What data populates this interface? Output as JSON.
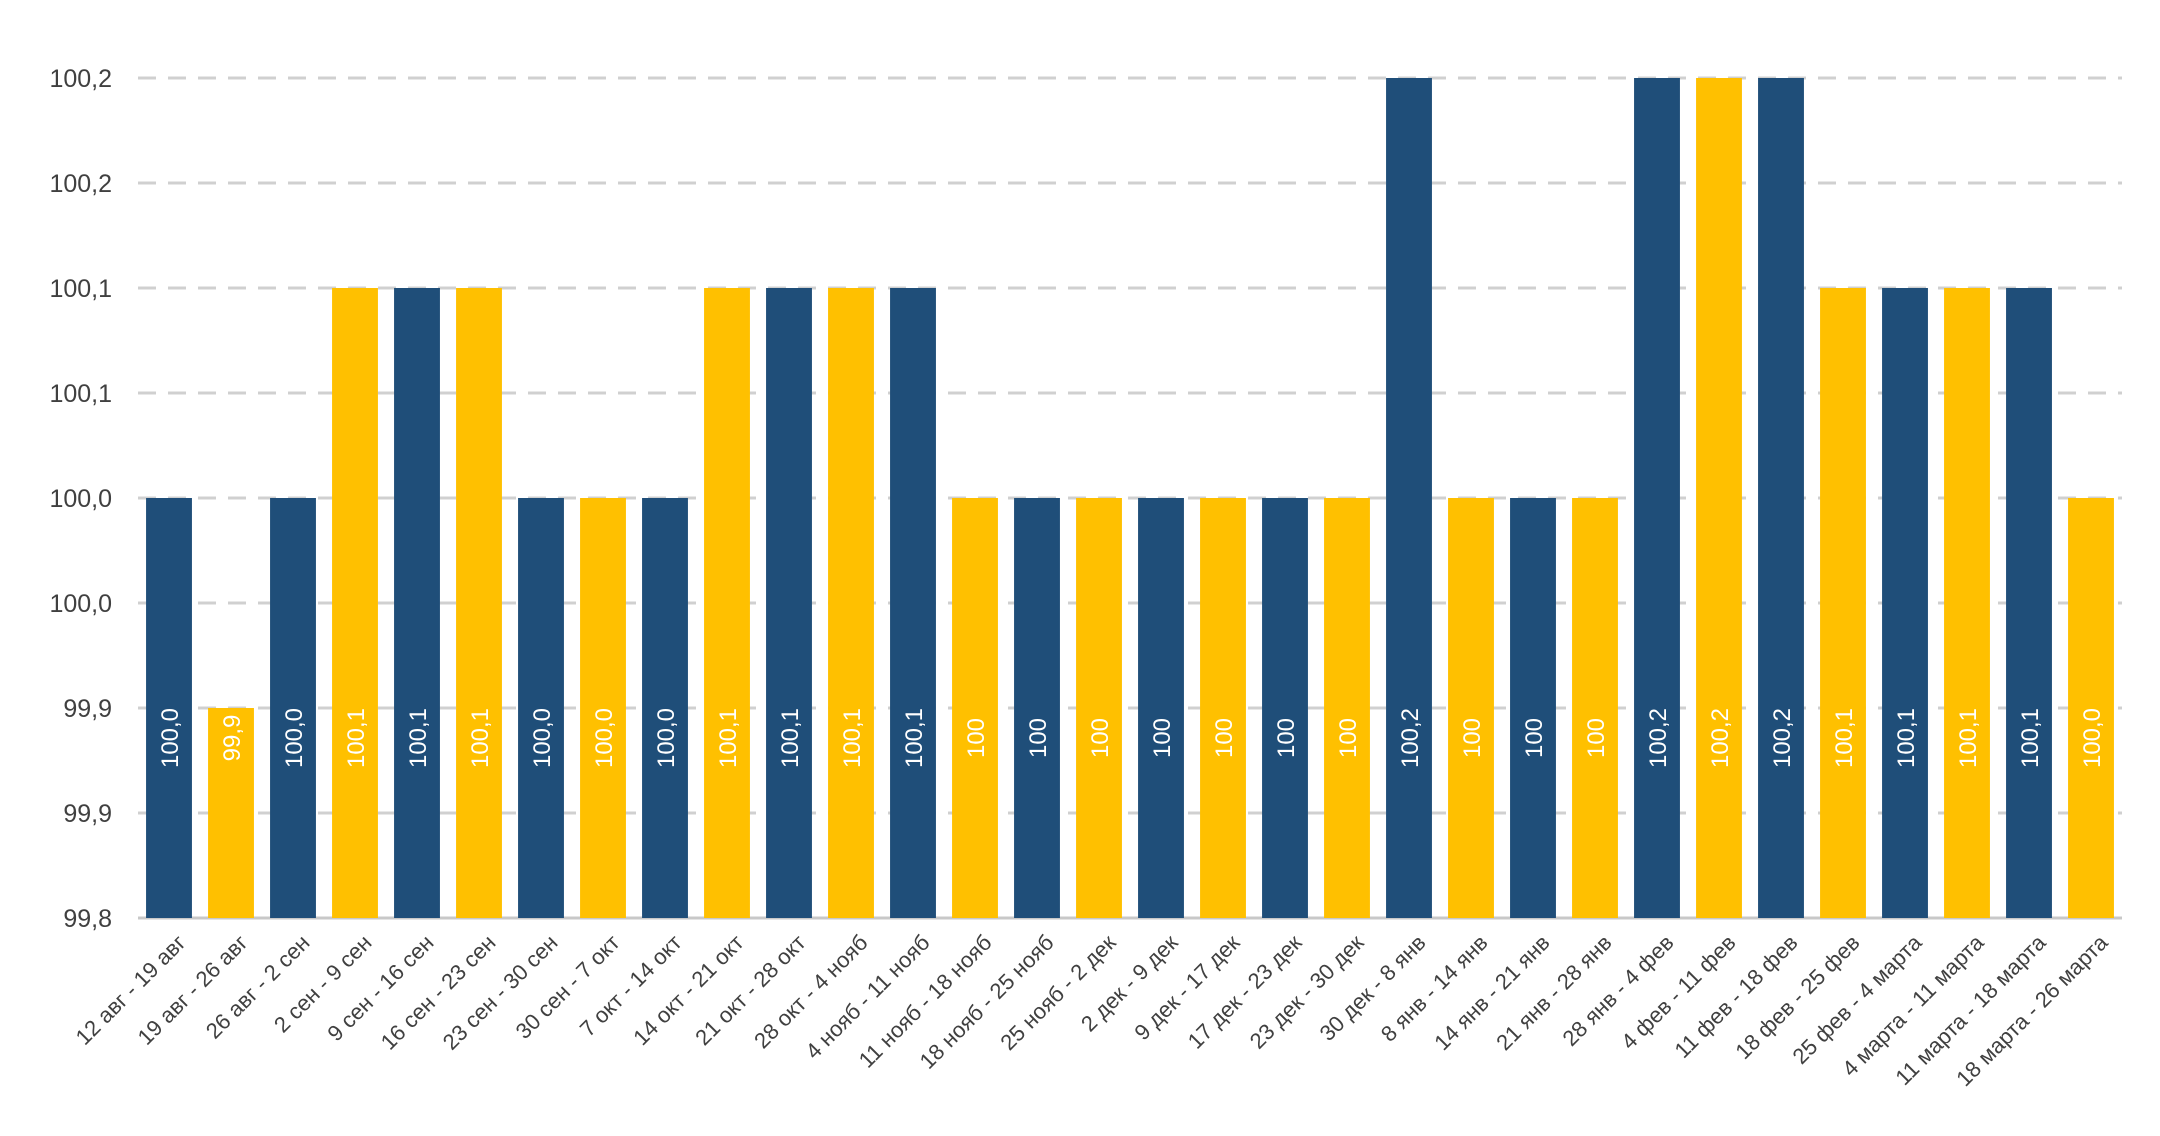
{
  "chart_data": {
    "type": "bar",
    "title": "",
    "xlabel": "",
    "ylabel": "",
    "ylim": [
      99.8,
      100.2
    ],
    "grid": true,
    "legend": "none",
    "y_tick_labels": [
      "99,8",
      "99,9",
      "99,9",
      "100,0",
      "100,0",
      "100,1",
      "100,1",
      "100,2",
      "100,2"
    ],
    "categories": [
      "12 авг - 19 авг",
      "19 авг - 26 авг",
      "26 авг - 2 сен",
      "2 сен - 9 сен",
      "9 сен - 16 сен",
      "16 сен - 23 сен",
      "23 сен - 30 сен",
      "30 сен - 7 окт",
      "7 окт - 14 окт",
      "14 окт - 21 окт",
      "21 окт - 28 окт",
      "28 окт - 4 нояб",
      "4 нояб - 11 нояб",
      "11 нояб - 18 нояб",
      "18 нояб - 25 нояб",
      "25 нояб - 2 дек",
      "2 дек - 9 дек",
      "9 дек - 17 дек",
      "17 дек - 23 дек",
      "23 дек - 30 дек",
      "30 дек - 8 янв",
      "8 янв - 14 янв",
      "14 янв - 21 янв",
      "21 янв - 28 янв",
      "28 янв - 4 фев",
      "4 фев - 11 фев",
      "11 фев - 18 фев",
      "18 фев - 25 фев",
      "25 фев - 4 марта",
      "4 марта - 11 марта",
      "11 марта - 18 марта",
      "18 марта - 26 марта"
    ],
    "values": [
      100.0,
      99.9,
      100.0,
      100.1,
      100.1,
      100.1,
      100.0,
      100.0,
      100.0,
      100.1,
      100.1,
      100.1,
      100.1,
      100.0,
      100.0,
      100.0,
      100.0,
      100.0,
      100.0,
      100.0,
      100.2,
      100.0,
      100.0,
      100.0,
      100.2,
      100.2,
      100.2,
      100.1,
      100.1,
      100.1,
      100.1,
      100.0
    ],
    "data_labels": [
      "100,0",
      "99,9",
      "100,0",
      "100,1",
      "100,1",
      "100,1",
      "100,0",
      "100,0",
      "100,0",
      "100,1",
      "100,1",
      "100,1",
      "100,1",
      "100",
      "100",
      "100",
      "100",
      "100",
      "100",
      "100",
      "100,2",
      "100",
      "100",
      "100",
      "100,2",
      "100,2",
      "100,2",
      "100,1",
      "100,1",
      "100,1",
      "100,1",
      "100,0"
    ],
    "colors": [
      "navy",
      "yellow",
      "navy",
      "yellow",
      "navy",
      "yellow",
      "navy",
      "yellow",
      "navy",
      "yellow",
      "navy",
      "yellow",
      "navy",
      "yellow",
      "navy",
      "yellow",
      "navy",
      "yellow",
      "navy",
      "yellow",
      "navy",
      "yellow",
      "navy",
      "yellow",
      "navy",
      "yellow",
      "navy",
      "yellow",
      "navy",
      "yellow",
      "navy",
      "yellow"
    ],
    "palette": {
      "navy": "#1f4e79",
      "yellow": "#ffc000"
    }
  }
}
